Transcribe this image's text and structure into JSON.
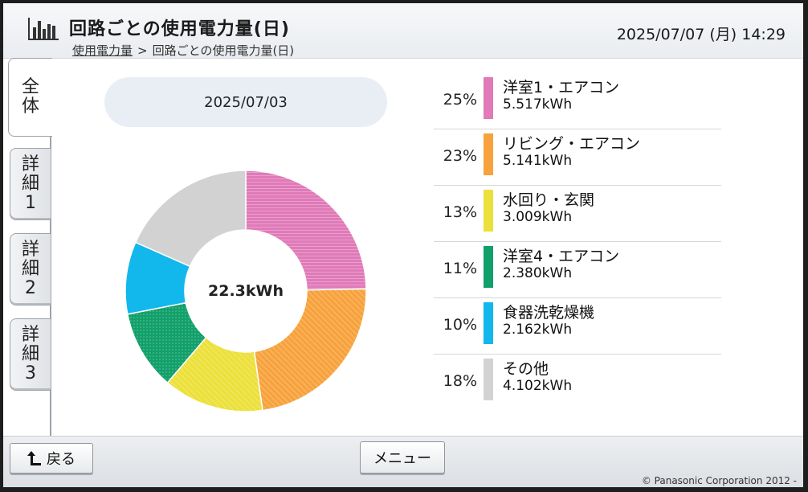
{
  "header": {
    "title": "回路ごとの使用電力量(日)",
    "datetime": "2025/07/07 (月) 14:29",
    "breadcrumb_link": "使用電力量",
    "breadcrumb_sep": ">",
    "breadcrumb_current": "回路ごとの使用電力量(日)"
  },
  "tabs": [
    {
      "label_top": "全",
      "label_mid": "体",
      "label_bot": ""
    },
    {
      "label_top": "詳",
      "label_mid": "細",
      "label_bot": "1"
    },
    {
      "label_top": "詳",
      "label_mid": "細",
      "label_bot": "2"
    },
    {
      "label_top": "詳",
      "label_mid": "細",
      "label_bot": "3"
    }
  ],
  "date": "2025/07/03",
  "total": "22.3kWh",
  "chart_data": {
    "type": "pie",
    "categories": [
      "洋室1・エアコン",
      "リビング・エアコン",
      "水回り・玄関",
      "洋室4・エアコン",
      "食器洗乾燥機",
      "その他"
    ],
    "values": [
      5.517,
      5.141,
      3.009,
      2.38,
      2.162,
      4.102
    ],
    "percent_labels": [
      "25%",
      "23%",
      "13%",
      "11%",
      "10%",
      "18%"
    ],
    "value_labels": [
      "5.517kWh",
      "5.141kWh",
      "3.009kWh",
      "2.380kWh",
      "2.162kWh",
      "4.102kWh"
    ],
    "colors": [
      "#e07ab8",
      "#f7a23c",
      "#ece03a",
      "#12a06a",
      "#12b8ec",
      "#d2d2d2"
    ],
    "center_label": "22.3kWh"
  },
  "footer": {
    "back_label": "戻る",
    "menu_label": "メニュー",
    "copyright": "© Panasonic Corporation 2012 -"
  }
}
